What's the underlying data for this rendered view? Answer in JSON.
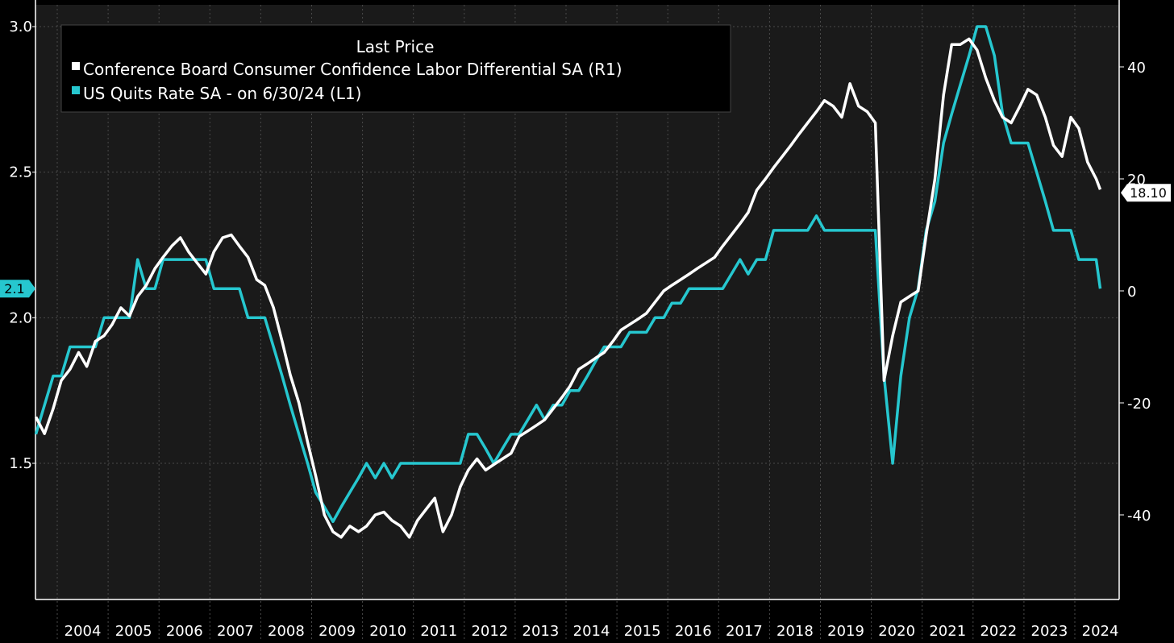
{
  "chart_data": {
    "type": "line",
    "legend_title": "Last Price",
    "legend_position": "top-left",
    "grid": true,
    "x_ticks": [
      "2004",
      "2005",
      "2006",
      "2007",
      "2008",
      "2009",
      "2010",
      "2011",
      "2012",
      "2013",
      "2014",
      "2015",
      "2016",
      "2017",
      "2018",
      "2019",
      "2020",
      "2021",
      "2022",
      "2023",
      "2024"
    ],
    "y_left": {
      "lim": [
        1.05,
        3.0
      ],
      "ticks": [
        1.5,
        2.0,
        2.5,
        3.0
      ],
      "tick_labels": [
        "1.5",
        "2.0",
        "2.5",
        "3.0"
      ]
    },
    "y_right": {
      "lim": [
        -53,
        50
      ],
      "ticks": [
        -40,
        -20,
        0,
        20,
        40
      ],
      "tick_labels": [
        "-40",
        "-20",
        "0",
        "20",
        "40"
      ]
    },
    "series": [
      {
        "name": "Conference Board Consumer Confidence Labor Differential SA  (R1)",
        "axis": "right",
        "color": "#ffffff",
        "last_value_label": "18.10",
        "points": [
          [
            2003.58,
            -22.5
          ],
          [
            2003.75,
            -25.5
          ],
          [
            2003.92,
            -21
          ],
          [
            2004.08,
            -16
          ],
          [
            2004.25,
            -14
          ],
          [
            2004.42,
            -11
          ],
          [
            2004.58,
            -13.5
          ],
          [
            2004.75,
            -9
          ],
          [
            2004.92,
            -8
          ],
          [
            2005.08,
            -6
          ],
          [
            2005.25,
            -3
          ],
          [
            2005.42,
            -4.5
          ],
          [
            2005.58,
            -1
          ],
          [
            2005.75,
            1
          ],
          [
            2005.92,
            4
          ],
          [
            2006.08,
            6
          ],
          [
            2006.25,
            8
          ],
          [
            2006.42,
            9.5
          ],
          [
            2006.58,
            7
          ],
          [
            2006.75,
            5
          ],
          [
            2006.92,
            3
          ],
          [
            2007.08,
            7
          ],
          [
            2007.25,
            9.5
          ],
          [
            2007.42,
            10
          ],
          [
            2007.58,
            8
          ],
          [
            2007.75,
            6
          ],
          [
            2007.92,
            2
          ],
          [
            2008.08,
            1
          ],
          [
            2008.25,
            -3
          ],
          [
            2008.42,
            -9
          ],
          [
            2008.58,
            -15
          ],
          [
            2008.75,
            -20
          ],
          [
            2008.92,
            -27
          ],
          [
            2009.08,
            -33
          ],
          [
            2009.25,
            -40
          ],
          [
            2009.42,
            -43
          ],
          [
            2009.58,
            -44
          ],
          [
            2009.75,
            -42
          ],
          [
            2009.92,
            -43
          ],
          [
            2010.08,
            -42
          ],
          [
            2010.25,
            -40
          ],
          [
            2010.42,
            -39.5
          ],
          [
            2010.58,
            -41
          ],
          [
            2010.75,
            -42
          ],
          [
            2010.92,
            -44
          ],
          [
            2011.08,
            -41
          ],
          [
            2011.25,
            -39
          ],
          [
            2011.42,
            -37
          ],
          [
            2011.58,
            -43
          ],
          [
            2011.75,
            -40
          ],
          [
            2011.92,
            -35
          ],
          [
            2012.08,
            -32
          ],
          [
            2012.25,
            -30
          ],
          [
            2012.42,
            -32
          ],
          [
            2012.58,
            -31
          ],
          [
            2012.75,
            -30
          ],
          [
            2012.92,
            -29
          ],
          [
            2013.08,
            -26
          ],
          [
            2013.25,
            -25
          ],
          [
            2013.42,
            -24
          ],
          [
            2013.58,
            -23
          ],
          [
            2013.75,
            -21
          ],
          [
            2013.92,
            -19
          ],
          [
            2014.08,
            -17
          ],
          [
            2014.25,
            -14
          ],
          [
            2014.42,
            -13
          ],
          [
            2014.58,
            -12
          ],
          [
            2014.75,
            -11
          ],
          [
            2014.92,
            -9
          ],
          [
            2015.08,
            -7
          ],
          [
            2015.25,
            -6
          ],
          [
            2015.42,
            -5
          ],
          [
            2015.58,
            -4
          ],
          [
            2015.75,
            -2
          ],
          [
            2015.92,
            0
          ],
          [
            2016.08,
            1
          ],
          [
            2016.25,
            2
          ],
          [
            2016.42,
            3
          ],
          [
            2016.58,
            4
          ],
          [
            2016.75,
            5
          ],
          [
            2016.92,
            6
          ],
          [
            2017.08,
            8
          ],
          [
            2017.25,
            10
          ],
          [
            2017.42,
            12
          ],
          [
            2017.58,
            14
          ],
          [
            2017.75,
            18
          ],
          [
            2017.92,
            20
          ],
          [
            2018.08,
            22
          ],
          [
            2018.25,
            24
          ],
          [
            2018.42,
            26
          ],
          [
            2018.58,
            28
          ],
          [
            2018.75,
            30
          ],
          [
            2018.92,
            32
          ],
          [
            2019.08,
            34
          ],
          [
            2019.25,
            33
          ],
          [
            2019.42,
            31
          ],
          [
            2019.58,
            37
          ],
          [
            2019.75,
            33
          ],
          [
            2019.92,
            32
          ],
          [
            2020.08,
            30
          ],
          [
            2020.25,
            -16
          ],
          [
            2020.42,
            -8
          ],
          [
            2020.58,
            -2
          ],
          [
            2020.75,
            -1
          ],
          [
            2020.92,
            0
          ],
          [
            2021.08,
            10
          ],
          [
            2021.25,
            20
          ],
          [
            2021.42,
            35
          ],
          [
            2021.58,
            44
          ],
          [
            2021.75,
            44
          ],
          [
            2021.92,
            45
          ],
          [
            2022.08,
            43
          ],
          [
            2022.25,
            38
          ],
          [
            2022.42,
            34
          ],
          [
            2022.58,
            31
          ],
          [
            2022.75,
            30
          ],
          [
            2022.92,
            33
          ],
          [
            2023.08,
            36
          ],
          [
            2023.25,
            35
          ],
          [
            2023.42,
            31
          ],
          [
            2023.58,
            26
          ],
          [
            2023.75,
            24
          ],
          [
            2023.92,
            31
          ],
          [
            2024.08,
            29
          ],
          [
            2024.25,
            23
          ],
          [
            2024.42,
            20
          ],
          [
            2024.5,
            18.1
          ]
        ]
      },
      {
        "name": "US Quits Rate SA -  on 6/30/24  (L1)",
        "axis": "left",
        "color": "#26c7cf",
        "last_value_label": "2.1",
        "points": [
          [
            2003.58,
            1.6
          ],
          [
            2003.75,
            1.7
          ],
          [
            2003.92,
            1.8
          ],
          [
            2004.08,
            1.8
          ],
          [
            2004.25,
            1.9
          ],
          [
            2004.42,
            1.9
          ],
          [
            2004.58,
            1.9
          ],
          [
            2004.75,
            1.9
          ],
          [
            2004.92,
            2.0
          ],
          [
            2005.08,
            2.0
          ],
          [
            2005.25,
            2.0
          ],
          [
            2005.42,
            2.0
          ],
          [
            2005.58,
            2.2
          ],
          [
            2005.75,
            2.1
          ],
          [
            2005.92,
            2.1
          ],
          [
            2006.08,
            2.2
          ],
          [
            2006.25,
            2.2
          ],
          [
            2006.42,
            2.2
          ],
          [
            2006.58,
            2.2
          ],
          [
            2006.75,
            2.2
          ],
          [
            2006.92,
            2.2
          ],
          [
            2007.08,
            2.1
          ],
          [
            2007.25,
            2.1
          ],
          [
            2007.42,
            2.1
          ],
          [
            2007.58,
            2.1
          ],
          [
            2007.75,
            2.0
          ],
          [
            2007.92,
            2.0
          ],
          [
            2008.08,
            2.0
          ],
          [
            2008.25,
            1.9
          ],
          [
            2008.42,
            1.8
          ],
          [
            2008.58,
            1.7
          ],
          [
            2008.75,
            1.6
          ],
          [
            2008.92,
            1.5
          ],
          [
            2009.08,
            1.4
          ],
          [
            2009.25,
            1.35
          ],
          [
            2009.42,
            1.3
          ],
          [
            2009.58,
            1.35
          ],
          [
            2009.75,
            1.4
          ],
          [
            2009.92,
            1.45
          ],
          [
            2010.08,
            1.5
          ],
          [
            2010.25,
            1.45
          ],
          [
            2010.42,
            1.5
          ],
          [
            2010.58,
            1.45
          ],
          [
            2010.75,
            1.5
          ],
          [
            2010.92,
            1.5
          ],
          [
            2011.08,
            1.5
          ],
          [
            2011.25,
            1.5
          ],
          [
            2011.42,
            1.5
          ],
          [
            2011.58,
            1.5
          ],
          [
            2011.75,
            1.5
          ],
          [
            2011.92,
            1.5
          ],
          [
            2012.08,
            1.6
          ],
          [
            2012.25,
            1.6
          ],
          [
            2012.42,
            1.55
          ],
          [
            2012.58,
            1.5
          ],
          [
            2012.75,
            1.55
          ],
          [
            2012.92,
            1.6
          ],
          [
            2013.08,
            1.6
          ],
          [
            2013.25,
            1.65
          ],
          [
            2013.42,
            1.7
          ],
          [
            2013.58,
            1.65
          ],
          [
            2013.75,
            1.7
          ],
          [
            2013.92,
            1.7
          ],
          [
            2014.08,
            1.75
          ],
          [
            2014.25,
            1.75
          ],
          [
            2014.42,
            1.8
          ],
          [
            2014.58,
            1.85
          ],
          [
            2014.75,
            1.9
          ],
          [
            2014.92,
            1.9
          ],
          [
            2015.08,
            1.9
          ],
          [
            2015.25,
            1.95
          ],
          [
            2015.42,
            1.95
          ],
          [
            2015.58,
            1.95
          ],
          [
            2015.75,
            2.0
          ],
          [
            2015.92,
            2.0
          ],
          [
            2016.08,
            2.05
          ],
          [
            2016.25,
            2.05
          ],
          [
            2016.42,
            2.1
          ],
          [
            2016.58,
            2.1
          ],
          [
            2016.75,
            2.1
          ],
          [
            2016.92,
            2.1
          ],
          [
            2017.08,
            2.1
          ],
          [
            2017.25,
            2.15
          ],
          [
            2017.42,
            2.2
          ],
          [
            2017.58,
            2.15
          ],
          [
            2017.75,
            2.2
          ],
          [
            2017.92,
            2.2
          ],
          [
            2018.08,
            2.3
          ],
          [
            2018.25,
            2.3
          ],
          [
            2018.42,
            2.3
          ],
          [
            2018.58,
            2.3
          ],
          [
            2018.75,
            2.3
          ],
          [
            2018.92,
            2.35
          ],
          [
            2019.08,
            2.3
          ],
          [
            2019.25,
            2.3
          ],
          [
            2019.42,
            2.3
          ],
          [
            2019.58,
            2.3
          ],
          [
            2019.75,
            2.3
          ],
          [
            2019.92,
            2.3
          ],
          [
            2020.08,
            2.3
          ],
          [
            2020.25,
            1.8
          ],
          [
            2020.42,
            1.5
          ],
          [
            2020.58,
            1.8
          ],
          [
            2020.75,
            2.0
          ],
          [
            2020.92,
            2.1
          ],
          [
            2021.08,
            2.3
          ],
          [
            2021.25,
            2.4
          ],
          [
            2021.42,
            2.6
          ],
          [
            2021.58,
            2.7
          ],
          [
            2021.75,
            2.8
          ],
          [
            2021.92,
            2.9
          ],
          [
            2022.08,
            3.0
          ],
          [
            2022.25,
            3.0
          ],
          [
            2022.42,
            2.9
          ],
          [
            2022.58,
            2.7
          ],
          [
            2022.75,
            2.6
          ],
          [
            2022.92,
            2.6
          ],
          [
            2023.08,
            2.6
          ],
          [
            2023.25,
            2.5
          ],
          [
            2023.42,
            2.4
          ],
          [
            2023.58,
            2.3
          ],
          [
            2023.75,
            2.3
          ],
          [
            2023.92,
            2.3
          ],
          [
            2024.08,
            2.2
          ],
          [
            2024.25,
            2.2
          ],
          [
            2024.42,
            2.2
          ],
          [
            2024.5,
            2.1
          ]
        ]
      }
    ]
  }
}
